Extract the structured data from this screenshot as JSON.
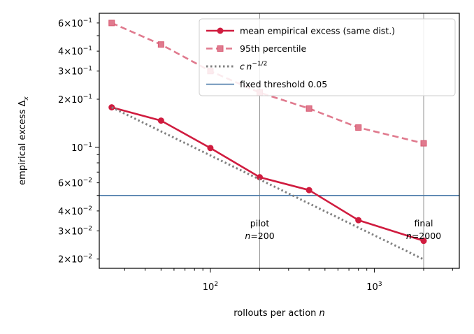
{
  "chart_data": {
    "type": "line",
    "xlabel": "rollouts per action n",
    "ylabel": "empirical excess Δx",
    "xscale": "log",
    "yscale": "log",
    "xlim": [
      21,
      3300
    ],
    "ylim": [
      0.0175,
      0.69
    ],
    "x": [
      25,
      50,
      100,
      200,
      400,
      800,
      2000
    ],
    "series": [
      {
        "name": "mean empirical excess (same dist.)",
        "color": "#d01c3f",
        "style": "solid",
        "marker": "circle",
        "values": [
          0.178,
          0.147,
          0.099,
          0.065,
          0.054,
          0.035,
          0.026
        ]
      },
      {
        "name": "95th percentile",
        "color": "#e07a8e",
        "style": "dashed",
        "marker": "square",
        "values": [
          0.6,
          0.44,
          0.3,
          0.22,
          0.175,
          0.133,
          0.106
        ]
      },
      {
        "name": "c n^-1/2",
        "color": "#808080",
        "style": "dotted",
        "marker": "none",
        "x": [
          25,
          2000
        ],
        "values": [
          0.178,
          0.0199
        ]
      }
    ],
    "hlines": [
      {
        "name": "fixed threshold 0.05",
        "y": 0.05,
        "color": "#4878a8"
      }
    ],
    "vlines": [
      {
        "x": 200,
        "label_line1": "pilot",
        "label_line2": "n=200",
        "color": "#808080"
      },
      {
        "x": 2000,
        "label_line1": "final",
        "label_line2": "n=2000",
        "color": "#808080"
      }
    ],
    "xticks": [
      {
        "value": 100,
        "base": "10",
        "exp": "2"
      },
      {
        "value": 1000,
        "base": "10",
        "exp": "3"
      }
    ],
    "yticks": [
      {
        "value": 0.02,
        "mant": "2",
        "base": "10",
        "exp": "−2"
      },
      {
        "value": 0.03,
        "mant": "3",
        "base": "10",
        "exp": "−2"
      },
      {
        "value": 0.04,
        "mant": "4",
        "base": "10",
        "exp": "−2"
      },
      {
        "value": 0.06,
        "mant": "6",
        "base": "10",
        "exp": "−2"
      },
      {
        "value": 0.1,
        "mant": "",
        "base": "10",
        "exp": "−1"
      },
      {
        "value": 0.2,
        "mant": "2",
        "base": "10",
        "exp": "−1"
      },
      {
        "value": 0.3,
        "mant": "3",
        "base": "10",
        "exp": "−1"
      },
      {
        "value": 0.4,
        "mant": "4",
        "base": "10",
        "exp": "−1"
      },
      {
        "value": 0.6,
        "mant": "6",
        "base": "10",
        "exp": "−1"
      }
    ],
    "legend": {
      "position": "top-right",
      "entries": [
        "mean empirical excess (same dist.)",
        "95th percentile",
        "c n^-1/2",
        "fixed threshold 0.05"
      ]
    },
    "grid": false
  }
}
